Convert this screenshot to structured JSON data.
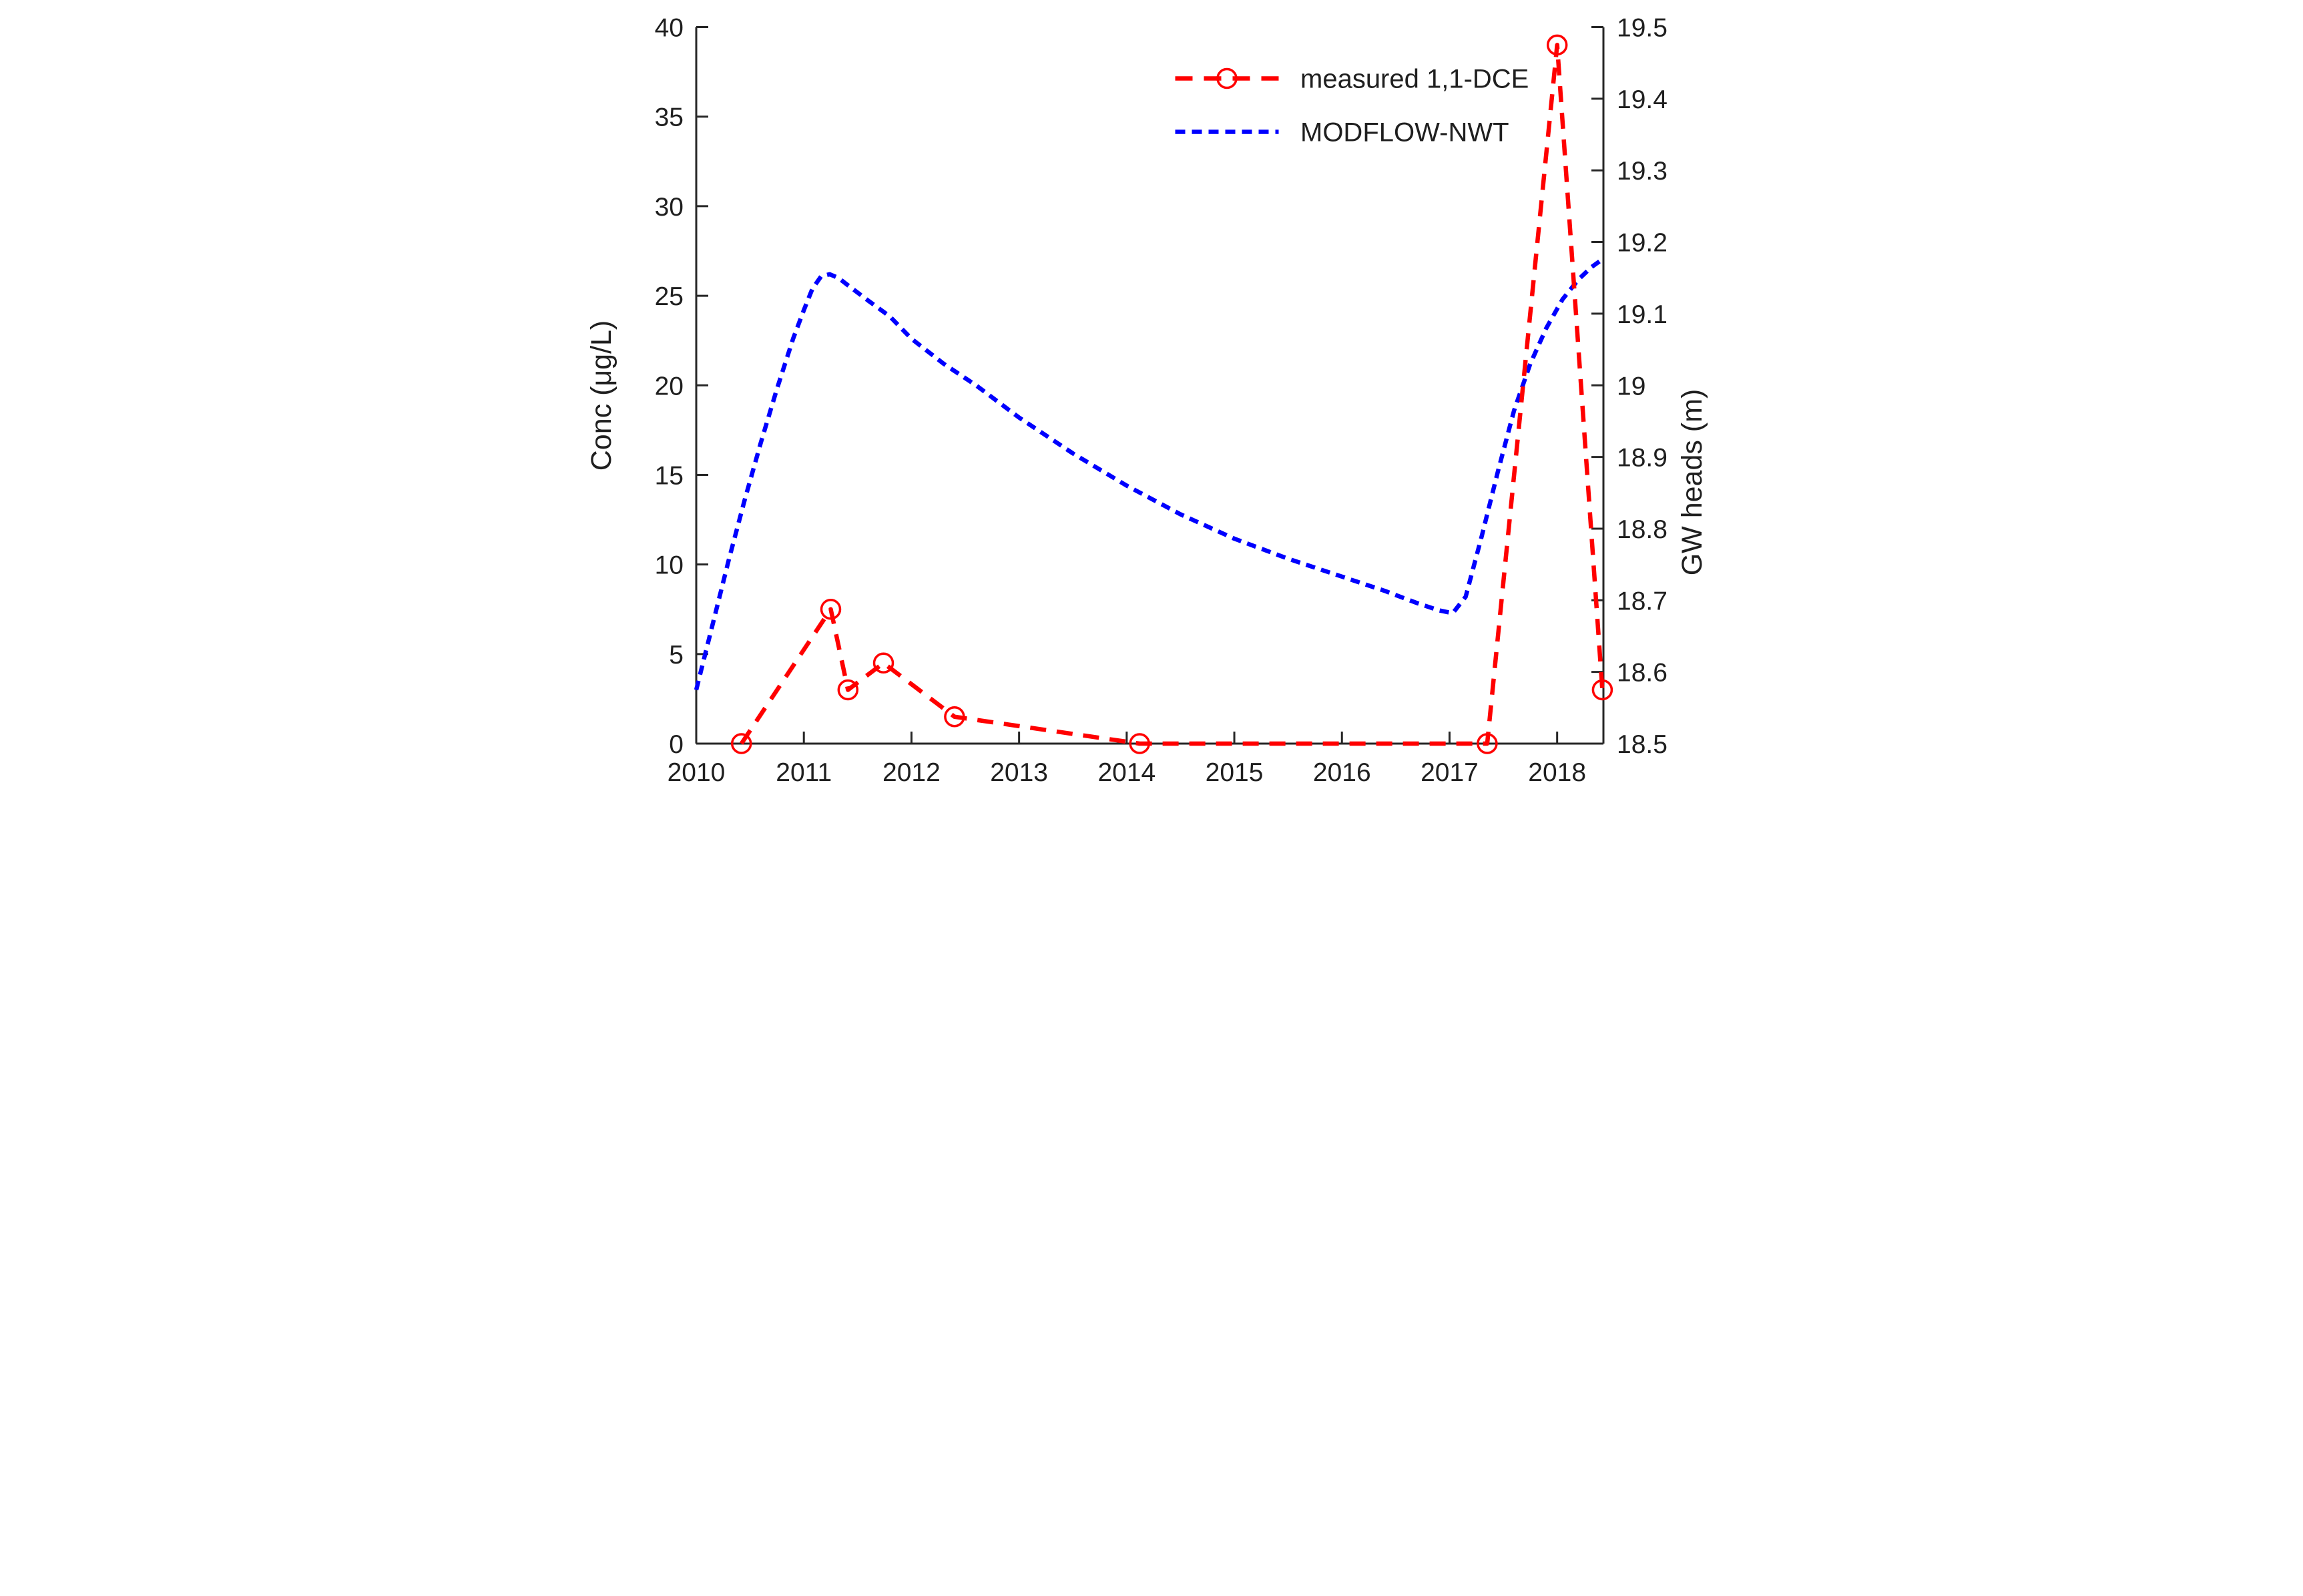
{
  "figure": {
    "background": "#ffffff",
    "axes_color": "#262626",
    "text_color": "#1f1f1f"
  },
  "chart_data": {
    "type": "line",
    "title": "",
    "x_axis": {
      "label": "",
      "range": [
        2010,
        2018.43
      ],
      "ticks": [
        2010,
        2011,
        2012,
        2013,
        2014,
        2015,
        2016,
        2017,
        2018
      ],
      "tick_labels": [
        "2010",
        "2011",
        "2012",
        "2013",
        "2014",
        "2015",
        "2016",
        "2017",
        "2018"
      ]
    },
    "left_y_axis": {
      "label": "Conc (μg/L)",
      "range": [
        0,
        40
      ],
      "ticks": [
        0,
        5,
        10,
        15,
        20,
        25,
        30,
        35,
        40
      ],
      "tick_labels": [
        "0",
        "5",
        "10",
        "15",
        "20",
        "25",
        "30",
        "35",
        "40"
      ]
    },
    "right_y_axis": {
      "label": "GW heads (m)",
      "range": [
        18.5,
        19.5
      ],
      "ticks": [
        18.5,
        18.6,
        18.7,
        18.8,
        18.9,
        19.0,
        19.1,
        19.2,
        19.3,
        19.4,
        19.5
      ],
      "tick_labels": [
        "18.5",
        "18.6",
        "18.7",
        "18.8",
        "18.9",
        "19",
        "19.1",
        "19.2",
        "19.3",
        "19.4",
        "19.5"
      ]
    },
    "grid": "off",
    "legend_position": "top-right-inside",
    "series": [
      {
        "name": "measured 1,1-DCE",
        "axis": "left",
        "color": "#ff0000",
        "style": "dashed",
        "marker": "open-circle",
        "points": [
          [
            2010.42,
            0.0
          ],
          [
            2011.25,
            7.5
          ],
          [
            2011.41,
            3.0
          ],
          [
            2011.74,
            4.5
          ],
          [
            2012.4,
            1.5
          ],
          [
            2014.12,
            0.0
          ],
          [
            2017.35,
            0.0
          ],
          [
            2018.0,
            39.0
          ],
          [
            2018.42,
            3.0
          ]
        ]
      },
      {
        "name": "MODFLOW-NWT",
        "axis": "right",
        "color": "#0000ff",
        "style": "dashed",
        "marker": "none",
        "points": [
          [
            2010.0,
            18.575
          ],
          [
            2010.15,
            18.665
          ],
          [
            2010.3,
            18.755
          ],
          [
            2010.45,
            18.84
          ],
          [
            2010.6,
            18.92
          ],
          [
            2010.75,
            18.995
          ],
          [
            2010.9,
            19.065
          ],
          [
            2011.0,
            19.105
          ],
          [
            2011.08,
            19.135
          ],
          [
            2011.16,
            19.152
          ],
          [
            2011.24,
            19.155
          ],
          [
            2011.32,
            19.15
          ],
          [
            2011.45,
            19.135
          ],
          [
            2011.6,
            19.118
          ],
          [
            2011.8,
            19.096
          ],
          [
            2012.0,
            19.065
          ],
          [
            2012.3,
            19.03
          ],
          [
            2012.6,
            19.0
          ],
          [
            2013.0,
            18.955
          ],
          [
            2013.5,
            18.905
          ],
          [
            2014.0,
            18.86
          ],
          [
            2014.5,
            18.82
          ],
          [
            2015.0,
            18.786
          ],
          [
            2015.5,
            18.758
          ],
          [
            2016.0,
            18.733
          ],
          [
            2016.4,
            18.713
          ],
          [
            2016.7,
            18.696
          ],
          [
            2016.9,
            18.686
          ],
          [
            2017.03,
            18.682
          ],
          [
            2017.15,
            18.705
          ],
          [
            2017.3,
            18.79
          ],
          [
            2017.45,
            18.88
          ],
          [
            2017.6,
            18.965
          ],
          [
            2017.75,
            19.03
          ],
          [
            2017.9,
            19.08
          ],
          [
            2018.05,
            19.12
          ],
          [
            2018.2,
            19.148
          ],
          [
            2018.32,
            19.165
          ],
          [
            2018.43,
            19.177
          ]
        ]
      }
    ]
  }
}
